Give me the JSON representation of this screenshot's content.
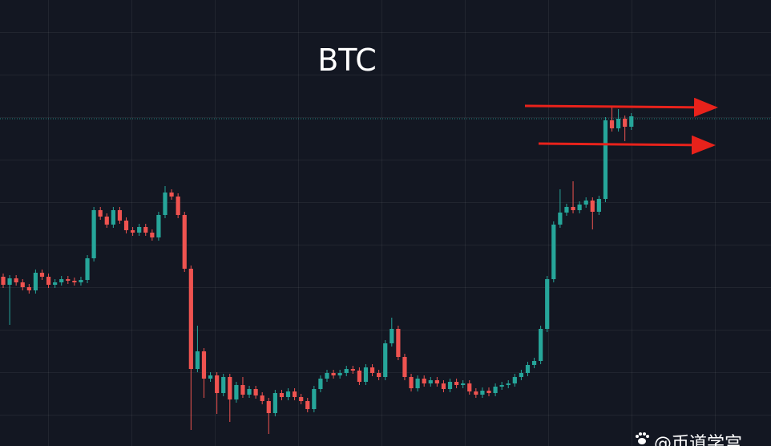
{
  "chart_data": {
    "type": "candlestick",
    "title": "BTC",
    "watermark": "@币道学宫",
    "ylim": [
      0,
      556
    ],
    "price_line": 408,
    "up_color": "#26a69a",
    "down_color": "#ef5350",
    "open": [
      211,
      201,
      209,
      204,
      198,
      194,
      216,
      211,
      201,
      204,
      208,
      206,
      204,
      207,
      234,
      294,
      286,
      276,
      294,
      281,
      269,
      266,
      273,
      266,
      260,
      288,
      316,
      311,
      288,
      221,
      96,
      118,
      84,
      88,
      66,
      86,
      58,
      76,
      64,
      71,
      63,
      56,
      41,
      66,
      61,
      68,
      61,
      56,
      46,
      71,
      84,
      91,
      88,
      91,
      96,
      94,
      80,
      98,
      91,
      86,
      128,
      146,
      111,
      86,
      72,
      84,
      78,
      82,
      78,
      71,
      80,
      76,
      78,
      68,
      64,
      69,
      66,
      74,
      76,
      78,
      86,
      91,
      101,
      106,
      146,
      208,
      276,
      291,
      298,
      294,
      301,
      306,
      292,
      308,
      406,
      396,
      408,
      398
    ],
    "high": [
      215,
      213,
      213,
      208,
      202,
      220,
      220,
      215,
      208,
      212,
      212,
      210,
      211,
      238,
      298,
      298,
      290,
      298,
      298,
      285,
      273,
      277,
      277,
      270,
      292,
      324,
      320,
      315,
      292,
      225,
      150,
      122,
      92,
      92,
      90,
      90,
      80,
      86,
      75,
      75,
      67,
      60,
      70,
      70,
      72,
      72,
      65,
      60,
      75,
      88,
      95,
      95,
      95,
      100,
      100,
      98,
      102,
      102,
      95,
      132,
      160,
      150,
      115,
      90,
      88,
      88,
      86,
      86,
      82,
      84,
      84,
      82,
      82,
      72,
      73,
      73,
      78,
      80,
      82,
      90,
      95,
      105,
      110,
      150,
      212,
      280,
      320,
      302,
      330,
      305,
      310,
      310,
      312,
      410,
      422,
      420,
      412,
      415
    ],
    "low": [
      197,
      151,
      200,
      194,
      190,
      190,
      207,
      197,
      197,
      200,
      202,
      200,
      200,
      203,
      230,
      282,
      272,
      272,
      277,
      265,
      262,
      262,
      262,
      256,
      256,
      284,
      307,
      284,
      217,
      20,
      92,
      60,
      80,
      40,
      62,
      30,
      54,
      60,
      60,
      59,
      52,
      15,
      37,
      57,
      57,
      57,
      52,
      42,
      42,
      67,
      80,
      84,
      84,
      87,
      90,
      76,
      76,
      87,
      82,
      82,
      124,
      107,
      82,
      68,
      68,
      74,
      74,
      74,
      67,
      67,
      72,
      72,
      64,
      60,
      60,
      62,
      62,
      70,
      72,
      74,
      82,
      87,
      97,
      102,
      142,
      204,
      272,
      287,
      290,
      290,
      297,
      270,
      288,
      304,
      392,
      392,
      380,
      394
    ],
    "close": [
      201,
      209,
      204,
      198,
      194,
      216,
      211,
      201,
      204,
      208,
      206,
      204,
      207,
      234,
      294,
      286,
      276,
      294,
      281,
      269,
      266,
      273,
      266,
      260,
      288,
      316,
      311,
      288,
      221,
      96,
      118,
      84,
      88,
      66,
      86,
      58,
      76,
      64,
      71,
      63,
      56,
      41,
      66,
      61,
      68,
      61,
      56,
      46,
      71,
      84,
      91,
      88,
      91,
      96,
      94,
      80,
      98,
      91,
      86,
      128,
      146,
      111,
      86,
      72,
      84,
      78,
      82,
      78,
      71,
      80,
      76,
      78,
      68,
      64,
      69,
      66,
      74,
      76,
      78,
      86,
      91,
      101,
      106,
      146,
      208,
      276,
      291,
      298,
      294,
      301,
      306,
      292,
      308,
      406,
      396,
      408,
      398,
      411
    ]
  }
}
